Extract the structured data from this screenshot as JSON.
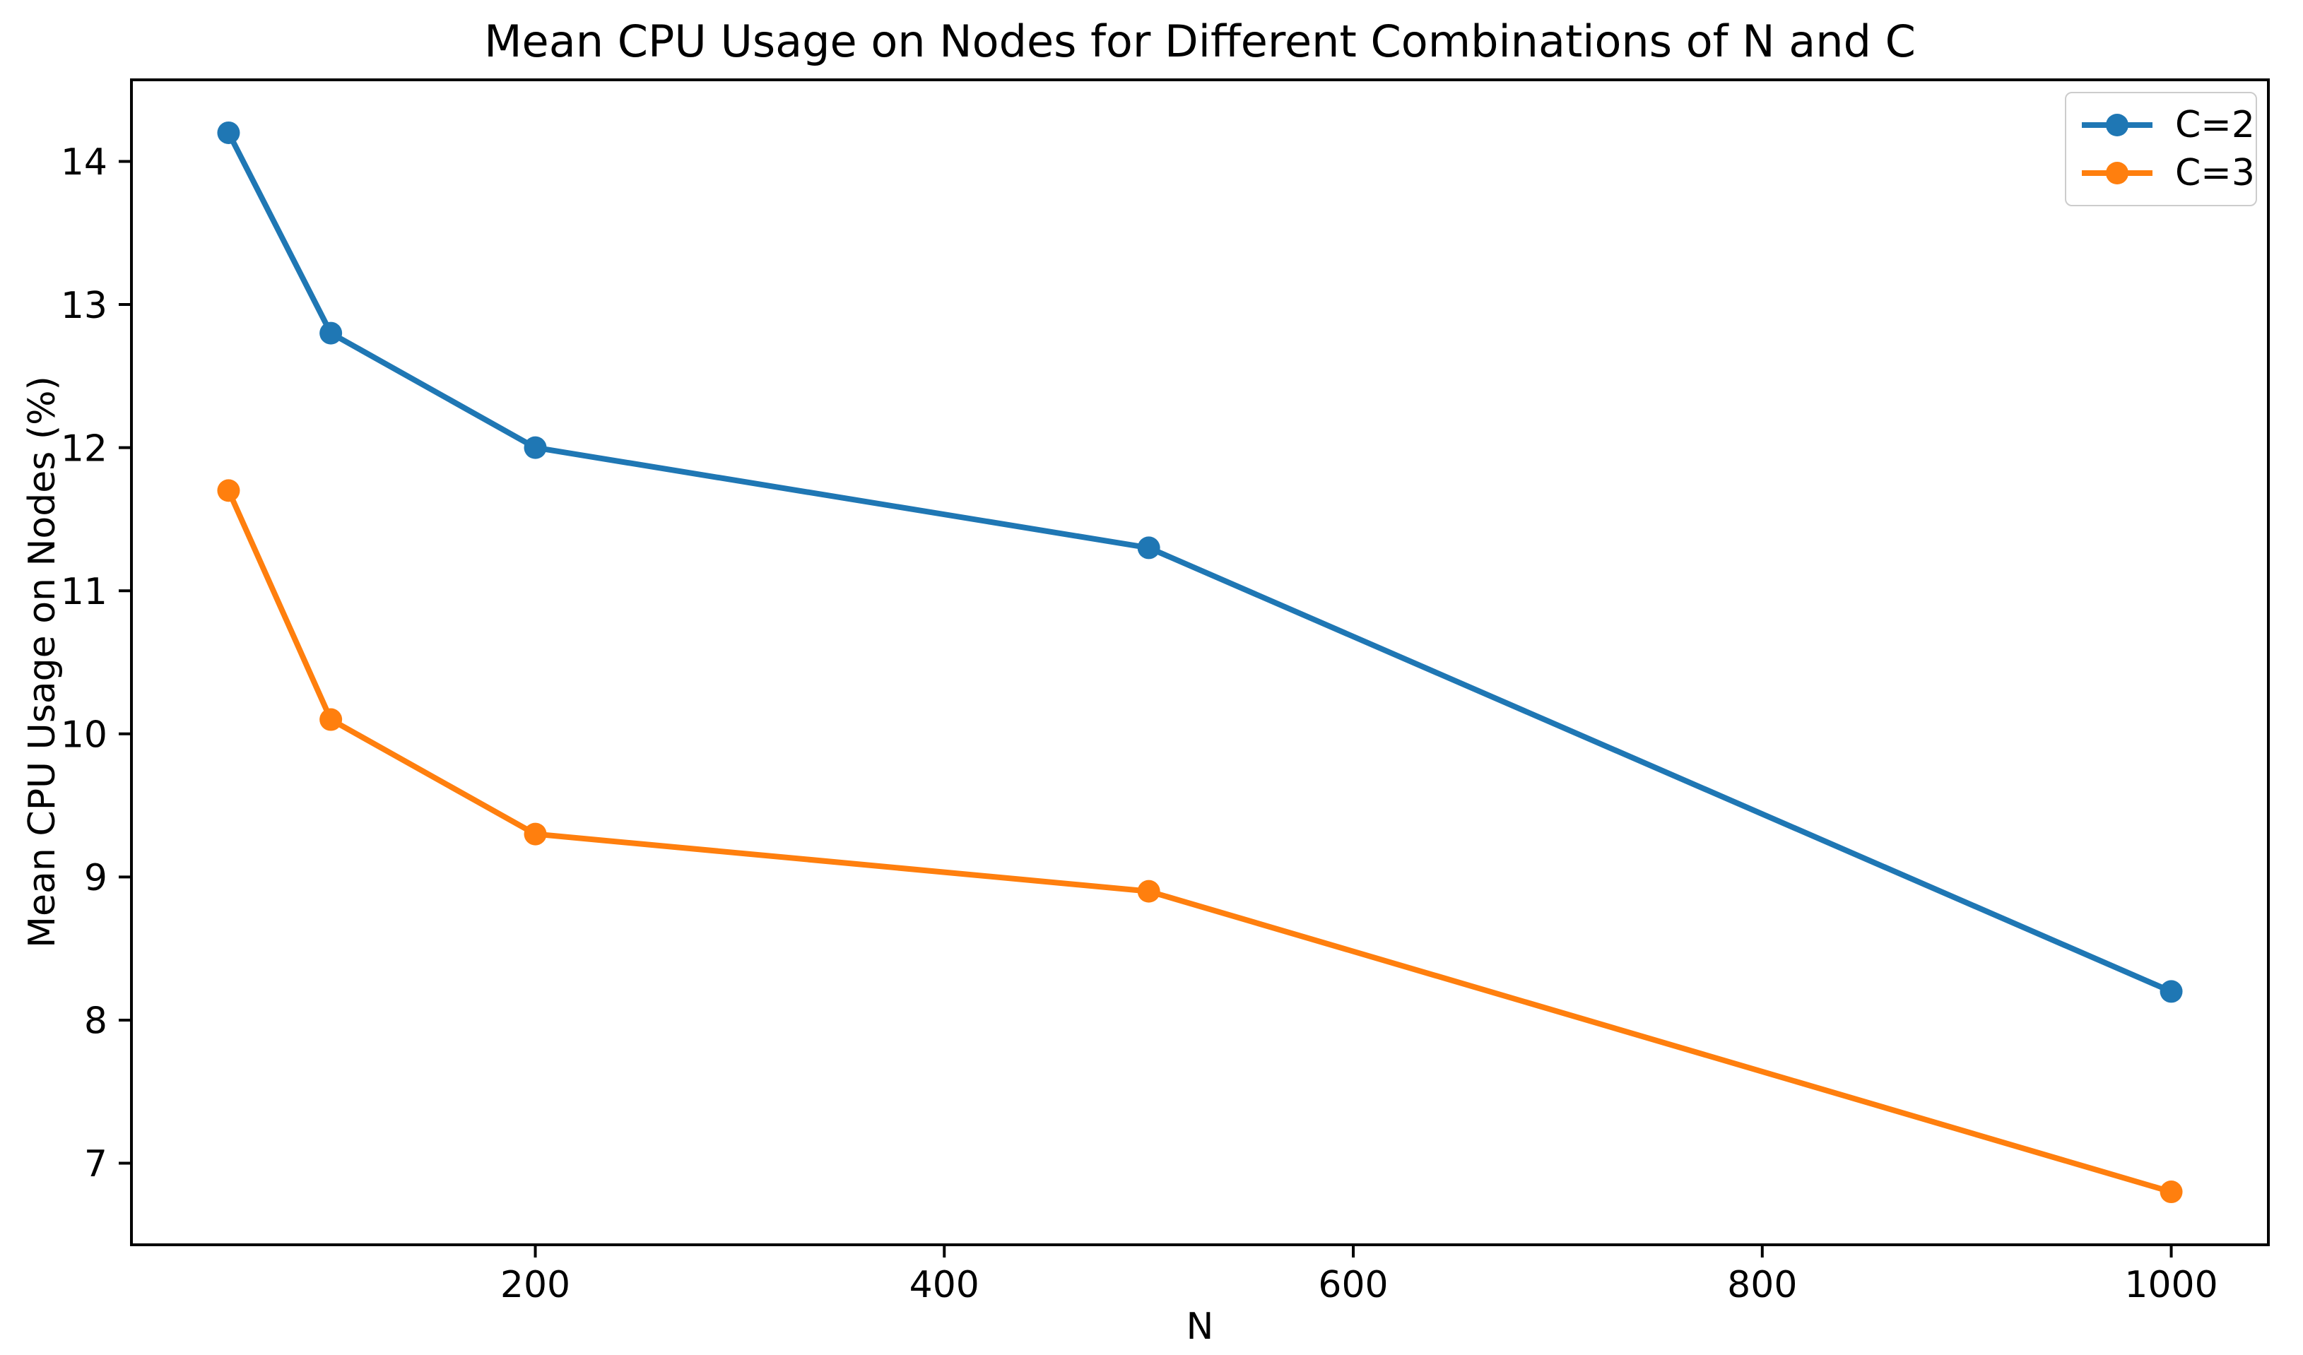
{
  "chart_data": {
    "type": "line",
    "title": "Mean CPU Usage on Nodes for Different Combinations of N and C",
    "xlabel": "N",
    "ylabel": "Mean CPU Usage on Nodes (%)",
    "x": [
      50,
      100,
      200,
      500,
      1000
    ],
    "series": [
      {
        "name": "C=2",
        "color": "#1f77b4",
        "values": [
          14.2,
          12.8,
          12.0,
          11.3,
          8.2
        ]
      },
      {
        "name": "C=3",
        "color": "#ff7f0e",
        "values": [
          11.7,
          10.1,
          9.3,
          8.9,
          6.8
        ]
      }
    ],
    "xlim": [
      2.5,
      1047.5
    ],
    "ylim": [
      6.43,
      14.57
    ],
    "xticks": [
      200,
      400,
      600,
      800,
      1000
    ],
    "yticks": [
      7,
      8,
      9,
      10,
      11,
      12,
      13,
      14
    ],
    "grid": false,
    "legend_position": "upper right",
    "marker": "circle",
    "axis_color": "#000000",
    "legend_border_color": "#cccccc",
    "background_color": "#ffffff"
  }
}
